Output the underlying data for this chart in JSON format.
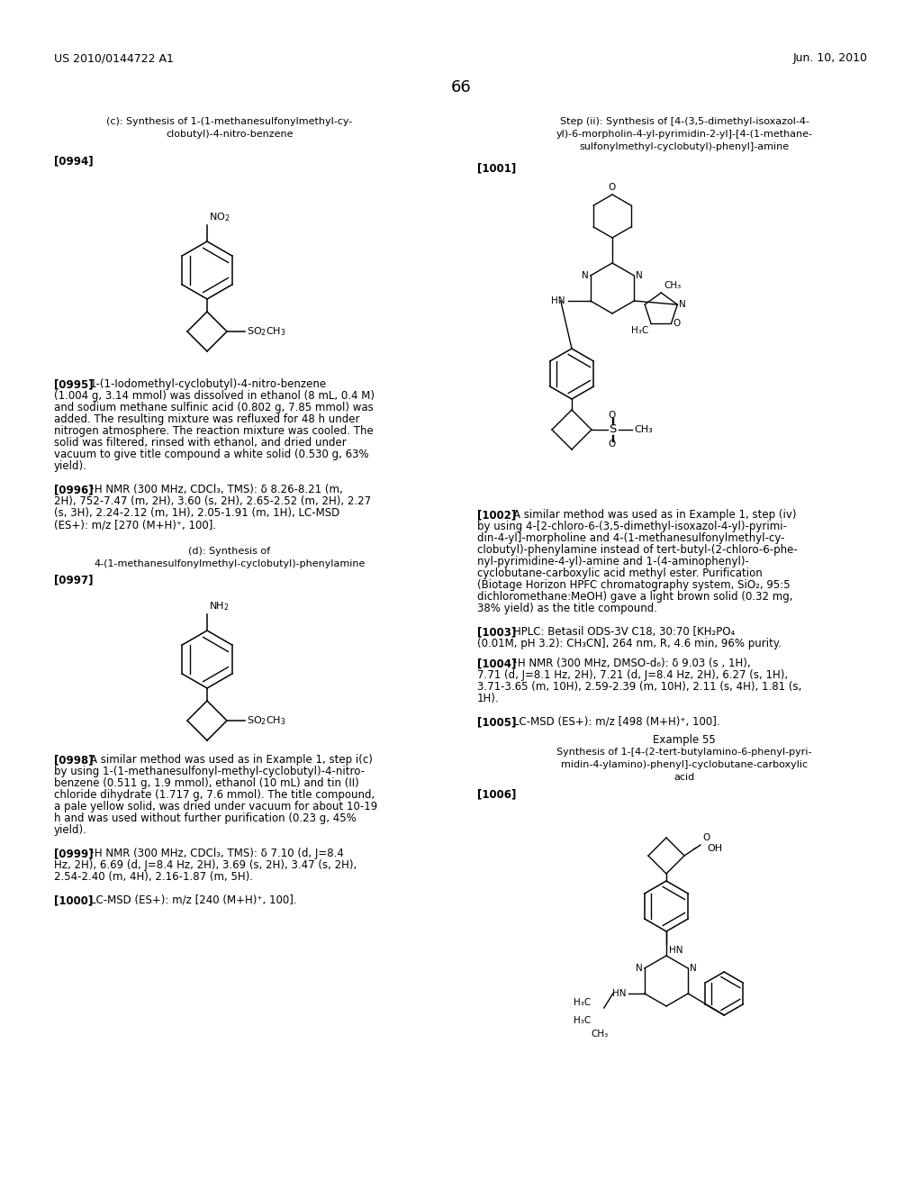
{
  "page_number": "66",
  "patent_number": "US 2010/0144722 A1",
  "patent_date": "Jun. 10, 2010",
  "background_color": "#ffffff",
  "text_color": "#000000"
}
